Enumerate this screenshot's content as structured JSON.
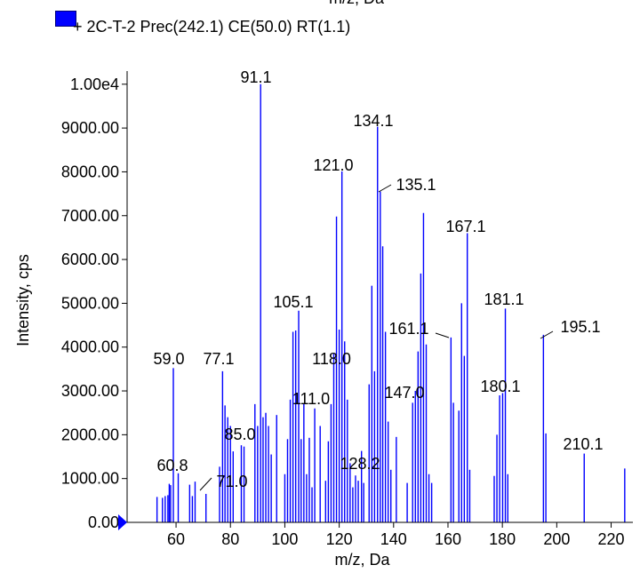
{
  "legend": {
    "label": "+ 2C-T-2 Prec(242.1) CE(50.0) RT(1.1)",
    "color": "#0000ff"
  },
  "top_clipped_text": "m/z, Da",
  "chart_data": {
    "type": "bar",
    "xlabel": "m/z, Da",
    "ylabel": "Intensity, cps",
    "xlim": [
      42,
      228
    ],
    "ylim": [
      0,
      10300
    ],
    "x_ticks": [
      60,
      80,
      100,
      120,
      140,
      160,
      180,
      200,
      220
    ],
    "x_tick_labels": [
      "60",
      "80",
      "100",
      "120",
      "140",
      "160",
      "180",
      "200",
      "220"
    ],
    "y_ticks": [
      0,
      1000,
      2000,
      3000,
      4000,
      5000,
      6000,
      7000,
      8000,
      9000,
      10000
    ],
    "y_tick_labels": [
      "0.00",
      "1000.00",
      "2000.00",
      "3000.00",
      "4000.00",
      "5000.00",
      "6000.00",
      "7000.00",
      "8000.00",
      "9000.00",
      "1.00e4"
    ],
    "series_color": "#0000ff",
    "peaks": [
      [
        53,
        580
      ],
      [
        55,
        560
      ],
      [
        56,
        600
      ],
      [
        57,
        620
      ],
      [
        57.5,
        880
      ],
      [
        58,
        850
      ],
      [
        59,
        3520
      ],
      [
        60.8,
        1120
      ],
      [
        65,
        860
      ],
      [
        66,
        600
      ],
      [
        67,
        930
      ],
      [
        71,
        650
      ],
      [
        76,
        1270
      ],
      [
        77.1,
        3450
      ],
      [
        78,
        2670
      ],
      [
        79,
        2400
      ],
      [
        80,
        2200
      ],
      [
        81,
        1620
      ],
      [
        84,
        1760
      ],
      [
        85,
        1730
      ],
      [
        89,
        2700
      ],
      [
        90,
        2200
      ],
      [
        91.1,
        10000
      ],
      [
        92,
        2400
      ],
      [
        93,
        2500
      ],
      [
        94,
        2200
      ],
      [
        95,
        1550
      ],
      [
        97,
        2450
      ],
      [
        100,
        1100
      ],
      [
        101,
        1900
      ],
      [
        102,
        2800
      ],
      [
        103,
        4350
      ],
      [
        104,
        4380
      ],
      [
        105.1,
        4830
      ],
      [
        106,
        1900
      ],
      [
        107,
        2700
      ],
      [
        108,
        1100
      ],
      [
        109,
        1930
      ],
      [
        110,
        800
      ],
      [
        111,
        2600
      ],
      [
        113,
        2200
      ],
      [
        115,
        950
      ],
      [
        116,
        1850
      ],
      [
        117,
        2700
      ],
      [
        118,
        3850
      ],
      [
        119,
        6980
      ],
      [
        120,
        4400
      ],
      [
        121,
        8010
      ],
      [
        122,
        4130
      ],
      [
        123,
        2800
      ],
      [
        124,
        1350
      ],
      [
        125,
        800
      ],
      [
        126,
        1070
      ],
      [
        127,
        950
      ],
      [
        128.2,
        1630
      ],
      [
        129,
        900
      ],
      [
        131,
        3150
      ],
      [
        132,
        5400
      ],
      [
        133,
        3450
      ],
      [
        134.1,
        9030
      ],
      [
        135.1,
        7550
      ],
      [
        136,
        6300
      ],
      [
        137,
        4350
      ],
      [
        138,
        2300
      ],
      [
        139,
        1200
      ],
      [
        141,
        1950
      ],
      [
        145,
        900
      ],
      [
        147,
        2730
      ],
      [
        148,
        3000
      ],
      [
        149,
        3900
      ],
      [
        150,
        5680
      ],
      [
        151,
        7060
      ],
      [
        152,
        4060
      ],
      [
        153,
        1100
      ],
      [
        154,
        900
      ],
      [
        161.1,
        4220
      ],
      [
        162,
        2730
      ],
      [
        164,
        2550
      ],
      [
        165,
        5000
      ],
      [
        166,
        3800
      ],
      [
        167.1,
        6600
      ],
      [
        168,
        1200
      ],
      [
        177,
        1060
      ],
      [
        178,
        2000
      ],
      [
        179,
        2900
      ],
      [
        180.1,
        2950
      ],
      [
        181.1,
        4880
      ],
      [
        182,
        1100
      ],
      [
        195.1,
        4280
      ],
      [
        196,
        2030
      ],
      [
        210.1,
        1570
      ],
      [
        225,
        1230
      ]
    ],
    "peak_labels": [
      {
        "text": "59.0",
        "x": 59.0
      },
      {
        "text": "60.8",
        "x": 60.8
      },
      {
        "text": "71.0",
        "x": 71.0
      },
      {
        "text": "77.1",
        "x": 77.1
      },
      {
        "text": "85.0",
        "x": 85.0
      },
      {
        "text": "91.1",
        "x": 91.1
      },
      {
        "text": "105.1",
        "x": 105.1
      },
      {
        "text": "111.0",
        "x": 111.0
      },
      {
        "text": "118.0",
        "x": 118.0
      },
      {
        "text": "121.0",
        "x": 121.0
      },
      {
        "text": "128.2",
        "x": 128.2
      },
      {
        "text": "134.1",
        "x": 134.1
      },
      {
        "text": "135.1",
        "x": 135.1
      },
      {
        "text": "147.0",
        "x": 147.0
      },
      {
        "text": "161.1",
        "x": 161.1
      },
      {
        "text": "167.1",
        "x": 167.1
      },
      {
        "text": "180.1",
        "x": 180.1
      },
      {
        "text": "181.1",
        "x": 181.1
      },
      {
        "text": "195.1",
        "x": 195.1
      },
      {
        "text": "210.1",
        "x": 210.1
      }
    ]
  }
}
